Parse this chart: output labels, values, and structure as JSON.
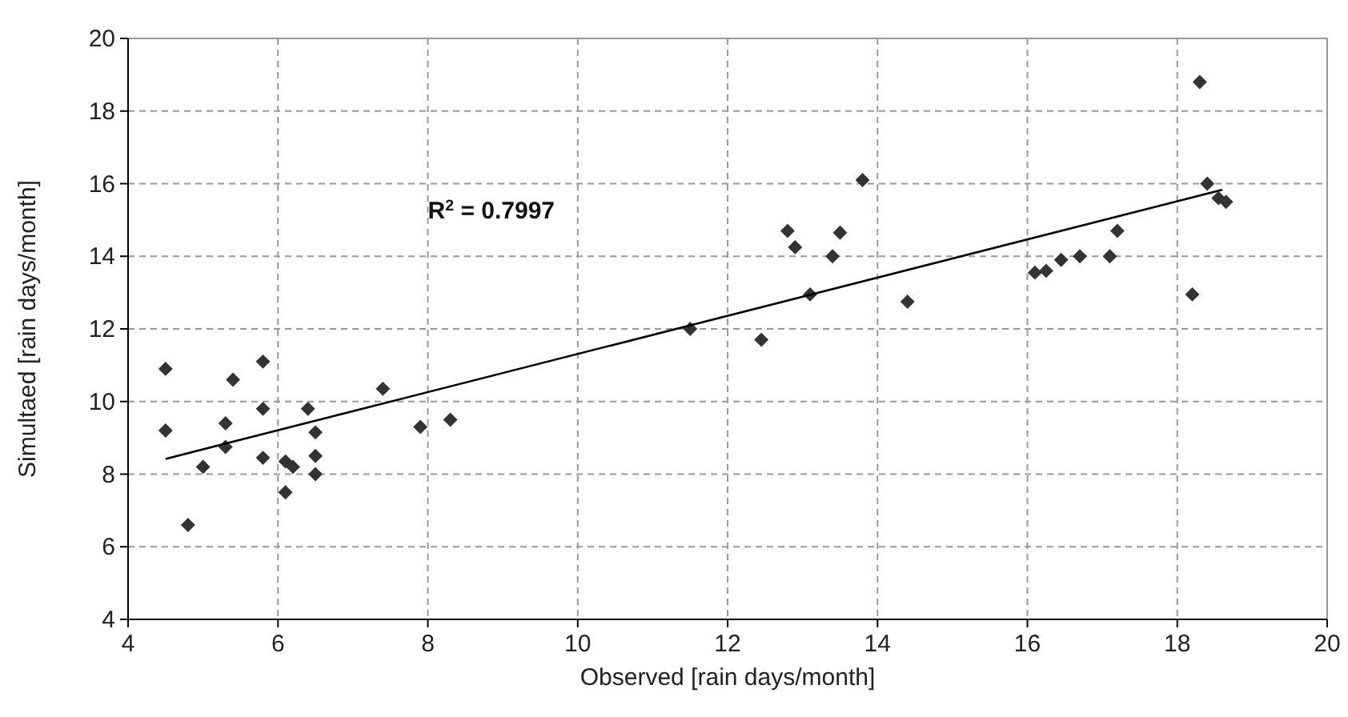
{
  "chart_data": {
    "type": "scatter",
    "xlabel": "Observed [rain days/month]",
    "ylabel": "Simultaed [rain days/month]",
    "annotations": [
      "R$^{2}$ = 0.7997"
    ],
    "xlim": [
      4,
      20
    ],
    "ylim": [
      4,
      20
    ],
    "xticks": [
      4,
      6,
      8,
      10,
      12,
      14,
      16,
      18,
      20
    ],
    "yticks": [
      4,
      6,
      8,
      10,
      12,
      14,
      16,
      18,
      20
    ],
    "grid": true,
    "marker": "diamond",
    "series": [
      {
        "color": "#333333",
        "x": [
          4.5,
          4.5,
          4.8,
          5.0,
          5.3,
          5.3,
          5.4,
          5.8,
          5.8,
          5.8,
          6.1,
          6.2,
          6.1,
          6.4,
          6.5,
          6.5,
          6.5,
          7.4,
          7.9,
          8.3,
          11.5,
          12.45,
          12.8,
          12.9,
          13.1,
          13.4,
          13.5,
          13.8,
          14.4,
          16.1,
          16.25,
          16.45,
          16.7,
          17.1,
          17.2,
          18.2,
          18.3,
          18.4,
          18.55,
          18.65
        ],
        "values": [
          10.9,
          9.2,
          6.6,
          8.2,
          9.4,
          8.75,
          10.6,
          11.1,
          9.8,
          8.45,
          8.35,
          8.2,
          7.5,
          9.8,
          9.15,
          8.5,
          8.0,
          10.35,
          9.3,
          9.5,
          12.0,
          11.7,
          14.7,
          14.25,
          12.95,
          14.0,
          14.65,
          16.1,
          12.75,
          13.55,
          13.6,
          13.9,
          14.0,
          14.0,
          14.7,
          12.95,
          18.8,
          16.0,
          15.6,
          15.5
        ]
      },
      {
        "type": "line",
        "color": "#000000",
        "marker": "none",
        "line_style": "solid",
        "x": [
          4.5,
          18.6
        ],
        "values": [
          8.42,
          15.83
        ]
      }
    ]
  }
}
